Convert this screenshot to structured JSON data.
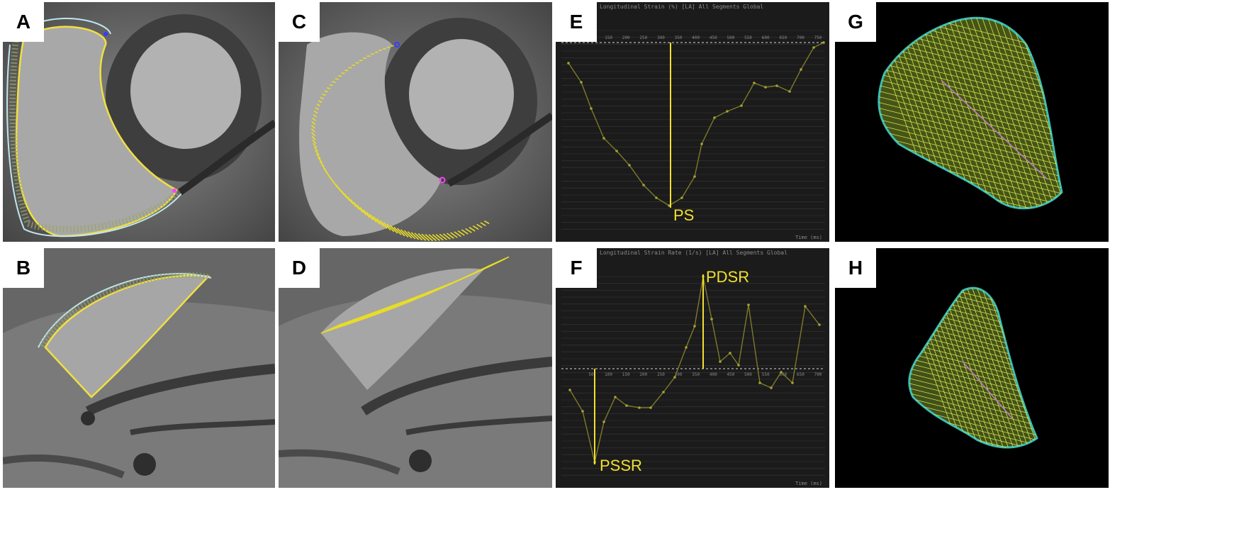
{
  "panels": {
    "a": {
      "label": "A"
    },
    "b": {
      "label": "B"
    },
    "c": {
      "label": "C"
    },
    "d": {
      "label": "D"
    },
    "e": {
      "label": "E",
      "header": "Longitudinal Strain (%) [LA] All Segments Global",
      "x_unit": "Time (ms)",
      "x_ticks": [
        "100",
        "150",
        "200",
        "250",
        "300",
        "350",
        "400",
        "450",
        "500",
        "550",
        "600",
        "650",
        "700",
        "750"
      ],
      "annotation": "PS"
    },
    "f": {
      "label": "F",
      "header": "Longitudinal Strain Rate (1/s) [LA] All Segments Global",
      "x_unit": "Time (ms)",
      "x_ticks": [
        "50",
        "100",
        "150",
        "200",
        "250",
        "300",
        "350",
        "400",
        "450",
        "500",
        "550",
        "600",
        "650",
        "700"
      ],
      "annotation_top": "PDSR",
      "annotation_bottom": "PSSR"
    },
    "g": {
      "label": "G"
    },
    "h": {
      "label": "H"
    }
  },
  "colors": {
    "trace": "#e8dc28",
    "endocardium": "#f0e040",
    "epicardium": "#bfe6f0",
    "plot_line": "#7d7a2a",
    "mesh": "#d8e850",
    "mesh_edge": "#3ec8c0"
  }
}
